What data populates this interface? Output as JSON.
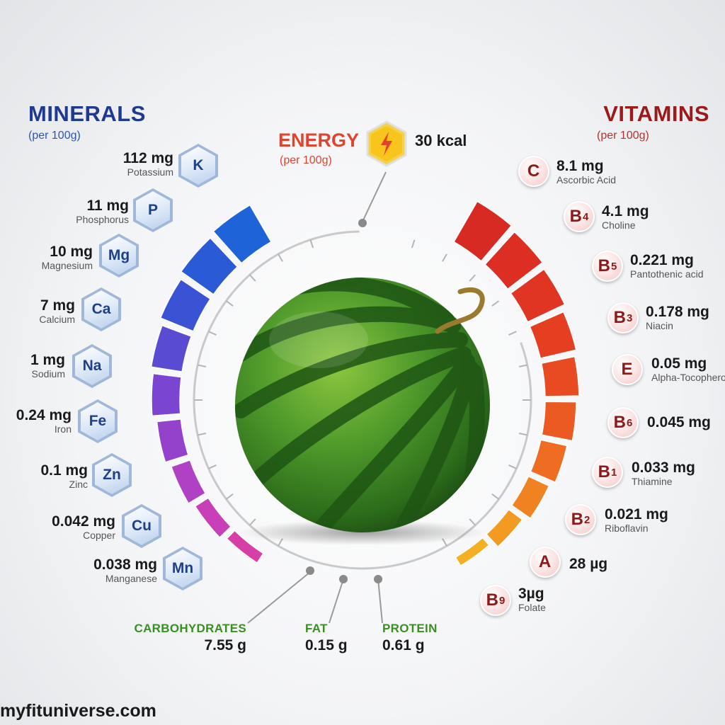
{
  "minerals": {
    "title": "MINERALS",
    "subtitle": "(per 100g)",
    "items": [
      {
        "symbol": "K",
        "amount": "112 mg",
        "name": "Potassium"
      },
      {
        "symbol": "P",
        "amount": "11 mg",
        "name": "Phosphorus"
      },
      {
        "symbol": "Mg",
        "amount": "10 mg",
        "name": "Magnesium"
      },
      {
        "symbol": "Ca",
        "amount": "7 mg",
        "name": "Calcium"
      },
      {
        "symbol": "Na",
        "amount": "1 mg",
        "name": "Sodium"
      },
      {
        "symbol": "Fe",
        "amount": "0.24 mg",
        "name": "Iron"
      },
      {
        "symbol": "Zn",
        "amount": "0.1 mg",
        "name": "Zinc"
      },
      {
        "symbol": "Cu",
        "amount": "0.042 mg",
        "name": "Copper"
      },
      {
        "symbol": "Mn",
        "amount": "0.038 mg",
        "name": "Manganese"
      }
    ]
  },
  "vitamins": {
    "title": "VITAMINS",
    "subtitle": "(per 100g)",
    "items": [
      {
        "letter": "C",
        "sub": "",
        "amount": "8.1 mg",
        "name": "Ascorbic Acid"
      },
      {
        "letter": "B",
        "sub": "4",
        "amount": "4.1 mg",
        "name": "Choline"
      },
      {
        "letter": "B",
        "sub": "5",
        "amount": "0.221 mg",
        "name": "Pantothenic acid"
      },
      {
        "letter": "B",
        "sub": "3",
        "amount": "0.178 mg",
        "name": "Niacin"
      },
      {
        "letter": "E",
        "sub": "",
        "amount": "0.05 mg",
        "name": "Alpha-Tocopherol"
      },
      {
        "letter": "B",
        "sub": "6",
        "amount": "0.045 mg",
        "name": ""
      },
      {
        "letter": "B",
        "sub": "1",
        "amount": "0.033 mg",
        "name": "Thiamine"
      },
      {
        "letter": "B",
        "sub": "2",
        "amount": "0.021 mg",
        "name": "Riboflavin"
      },
      {
        "letter": "A",
        "sub": "",
        "amount": "28 µg",
        "name": ""
      },
      {
        "letter": "B",
        "sub": "9",
        "amount": "3µg",
        "name": "Folate"
      }
    ]
  },
  "energy": {
    "title": "ENERGY",
    "subtitle": "(per 100g)",
    "value": "30 kcal",
    "icon": "lightning-bolt-icon"
  },
  "macros": {
    "carbohydrates": {
      "label": "CARBOHYDRATES",
      "value": "7.55 g"
    },
    "fat": {
      "label": "FAT",
      "value": "0.15 g"
    },
    "protein": {
      "label": "PROTEIN",
      "value": "0.61 g"
    }
  },
  "watermark": "myfituniverse.com",
  "colors": {
    "minerals_accent": "#1d3a8f",
    "vitamins_accent": "#9b1b1b",
    "energy_accent": "#e2432c",
    "macro_label": "#3a8f22",
    "watermelon_rind": "#2f7a22"
  }
}
